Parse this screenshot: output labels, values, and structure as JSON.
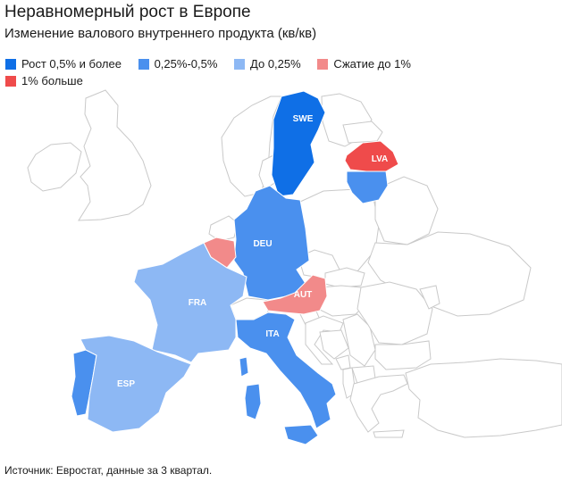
{
  "title": "Неравномерный рост в Европе",
  "subtitle": "Изменение валового внутреннего продукта (кв/кв)",
  "legend": [
    {
      "label": "Рост 0,5% и более",
      "color": "#0f6fe6"
    },
    {
      "label": "0,25%-0,5%",
      "color": "#4a90ee"
    },
    {
      "label": "До 0,25%",
      "color": "#8db8f4"
    },
    {
      "label": "Сжатие до 1%",
      "color": "#f28a8a"
    },
    {
      "label": "1% больше",
      "color": "#ef4b4b"
    }
  ],
  "countries": [
    {
      "code": "SWE",
      "category": "Рост 0,5% и более",
      "color": "#0f6fe6"
    },
    {
      "code": "LVA",
      "category": "1% больше",
      "color": "#ef4b4b"
    },
    {
      "code": "DEU",
      "category": "0,25%-0,5%",
      "color": "#4a90ee"
    },
    {
      "code": "AUT",
      "category": "Сжатие до 1%",
      "color": "#f28a8a"
    },
    {
      "code": "ITA",
      "category": "0,25%-0,5%",
      "color": "#4a90ee"
    },
    {
      "code": "FRA",
      "category": "До 0,25%",
      "color": "#8db8f4"
    },
    {
      "code": "ESP",
      "category": "До 0,25%",
      "color": "#8db8f4"
    }
  ],
  "unlabeled_colored": [
    {
      "name": "Бельгия",
      "color": "#f28a8a"
    },
    {
      "name": "Литва",
      "color": "#4a90ee"
    },
    {
      "name": "Португалия",
      "color": "#4a90ee"
    }
  ],
  "source": "Источник: Евростат, данные за 3 квартал."
}
